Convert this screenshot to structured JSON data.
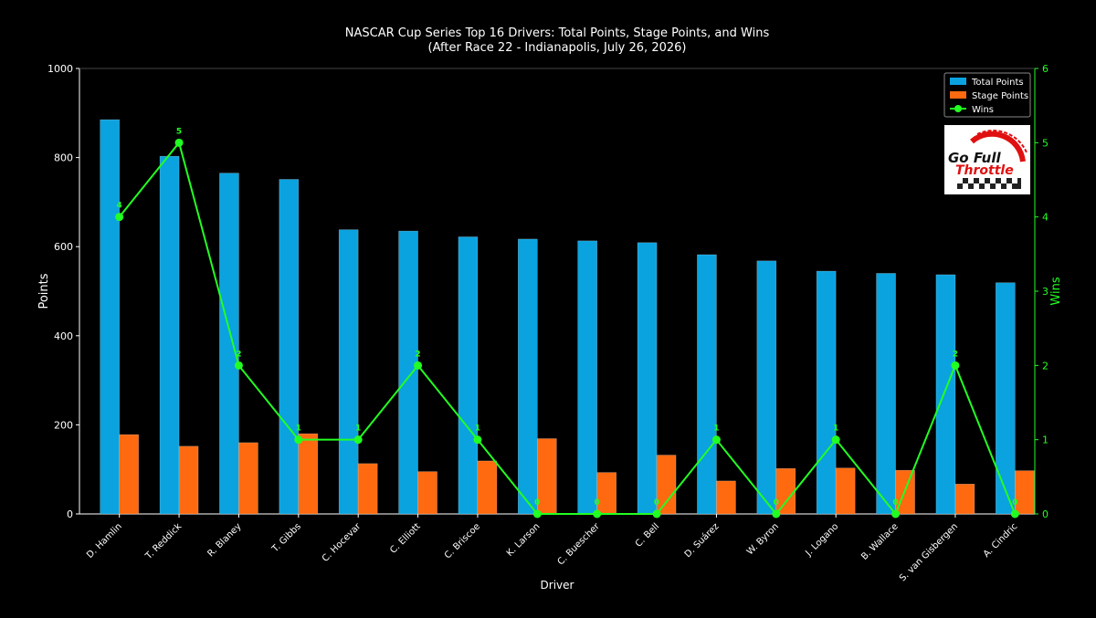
{
  "chart_data": {
    "type": "bar",
    "title": "NASCAR Cup Series Top 16 Drivers: Total Points, Stage Points, and Wins",
    "subtitle": "(After Race 22 - Indianapolis, July 26, 2026)",
    "xlabel": "Driver",
    "ylabel": "Points",
    "y2label": "Wins",
    "ylim": [
      0,
      1000
    ],
    "y2lim": [
      0,
      6
    ],
    "yticks": [
      0,
      200,
      400,
      600,
      800,
      1000
    ],
    "y2ticks": [
      0,
      1,
      2,
      3,
      4,
      5,
      6
    ],
    "categories": [
      "D. Hamlin",
      "T. Reddick",
      "R. Blaney",
      "T. Gibbs",
      "C. Hocevar",
      "C. Elliott",
      "C. Briscoe",
      "K. Larson",
      "C. Buescher",
      "C. Bell",
      "D. Suárez",
      "W. Byron",
      "J. Logano",
      "B. Wallace",
      "S. van Gisbergen",
      "A. Cindric"
    ],
    "series": [
      {
        "name": "Total Points",
        "type": "bar",
        "axis": "left",
        "color": "#0aa3e0",
        "values": [
          885,
          803,
          765,
          751,
          638,
          635,
          622,
          617,
          613,
          609,
          582,
          568,
          545,
          540,
          537,
          519
        ]
      },
      {
        "name": "Stage Points",
        "type": "bar",
        "axis": "left",
        "color": "#ff6a10",
        "values": [
          178,
          152,
          160,
          180,
          113,
          95,
          119,
          169,
          93,
          132,
          74,
          102,
          103,
          98,
          67,
          97
        ]
      },
      {
        "name": "Wins",
        "type": "line",
        "axis": "right",
        "color": "#22ff22",
        "values": [
          4,
          5,
          2,
          1,
          1,
          2,
          1,
          0,
          0,
          0,
          1,
          0,
          1,
          0,
          2,
          0
        ]
      }
    ],
    "legend_position": "top-right",
    "grid": false
  },
  "logo": {
    "name": "go-full-throttle-logo",
    "text_line1": "Go Full",
    "text_line2": "Throttle"
  }
}
